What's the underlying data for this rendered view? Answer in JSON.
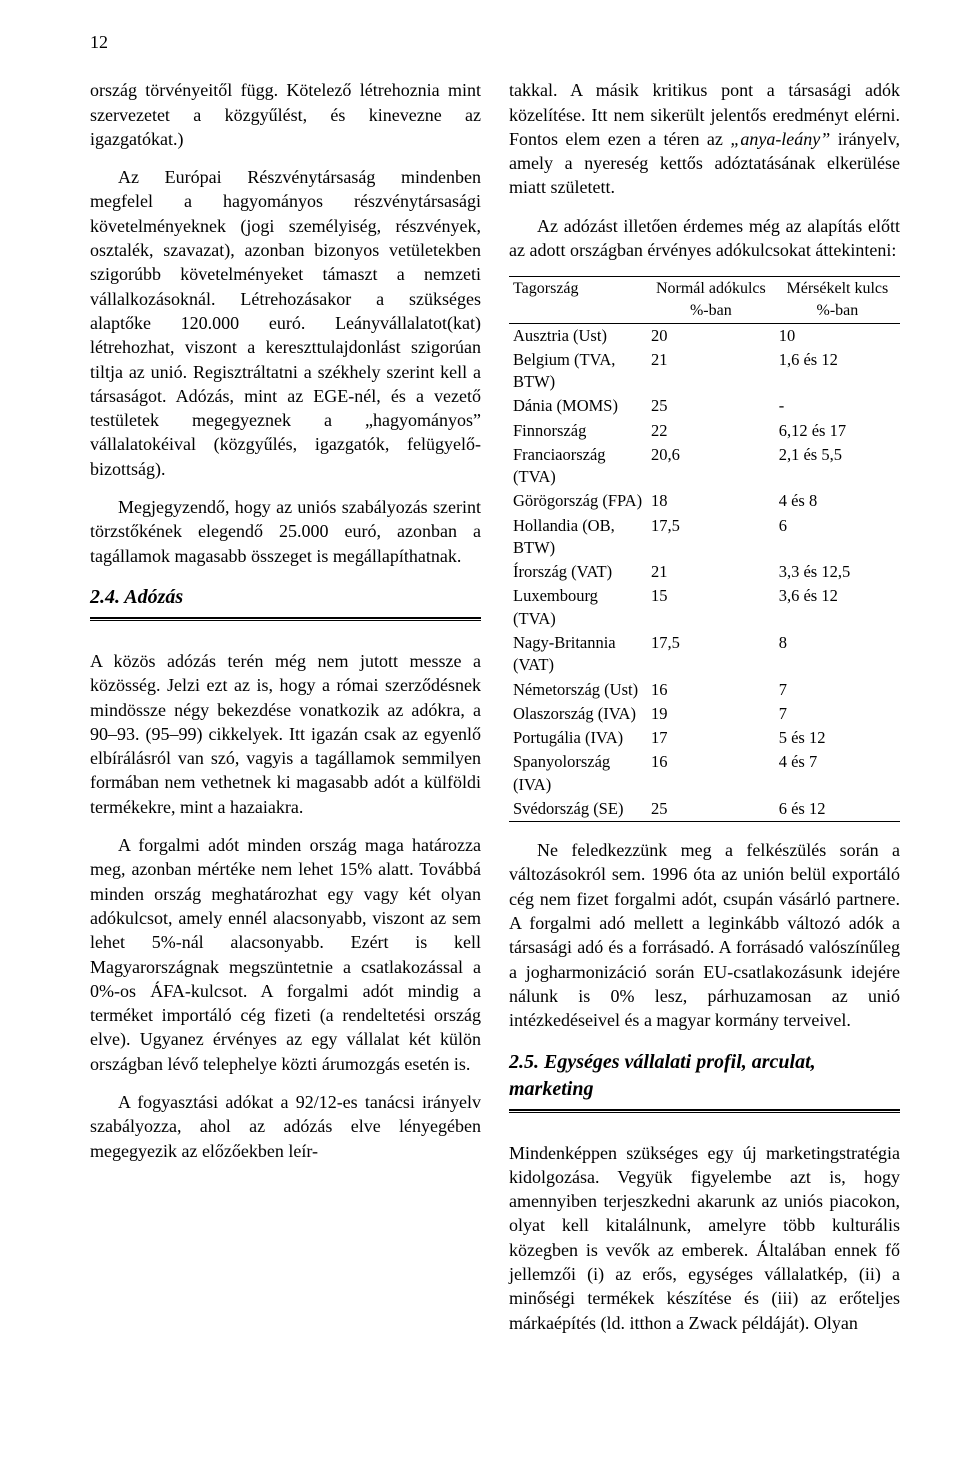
{
  "page_number": "12",
  "left": {
    "p1": "ország törvényeitől függ. Kötelező létrehoznia mint szervezetet a közgyűlést, és kinevezne az igazgatókat.)",
    "p2": "Az Európai Részvénytársaság mindenben megfelel a hagyományos részvénytársasági követelményeknek (jogi személyiség, részvények, osztalék, szavazat), azonban bizonyos vetületekben szigorúbb követelményeket támaszt a nemzeti vállalkozásoknál. Létrehozásakor a szükséges alaptőke 120.000 euró. Leányvállalatot(kat) létrehozhat, viszont a kereszttulajdonlást szigorúan tiltja az unió. Regisztráltatni a székhely szerint kell a társaságot. Adózás, mint az EGE-nél, és a vezető testületek megegyeznek a „hagyományos” vállalatokéival (közgyűlés, igazgatók, felügyelő-bizottság).",
    "p3": "Megjegyzendő, hogy az uniós szabályozás szerint törzstőkének elegendő 25.000 euró, azonban a tagállamok magasabb összeget is megállapíthatnak.",
    "h1": "2.4. Adózás",
    "p4": "A közös adózás terén még nem jutott messze a közösség. Jelzi ezt az is, hogy a római szerződésnek mindössze négy bekezdése vonatkozik az adókra, a 90–93. (95–99) cikkelyek. Itt igazán csak az egyenlő elbírálásról van szó, vagyis a tagállamok semmilyen formában nem vethetnek ki magasabb adót a külföldi termékekre, mint a hazaiakra.",
    "p5": "A forgalmi adót minden ország maga határozza meg, azonban mértéke nem lehet 15% alatt. Továbbá minden ország meghatározhat egy vagy két olyan adókulcsot, amely ennél alacsonyabb, viszont az sem lehet 5%-nál alacsonyabb. Ezért is kell Magyarországnak megszüntetnie a csatlakozással a 0%-os ÁFA-kulcsot. A forgalmi adót mindig a terméket importáló cég fizeti (a rendeltetési ország elve). Ugyanez érvényes az egy vállalat két külön országban lévő telephelye közti árumozgás esetén is.",
    "p6": "A fogyasztási adókat a 92/12-es tanácsi irányelv szabályozza, ahol az adózás elve lényegében megegyezik az előzőekben leír-"
  },
  "right": {
    "p1a": "takkal. A másik kritikus pont a társasági adók közelítése. Itt nem sikerült jelentős eredményt elérni. Fontos elem ezen a téren az ",
    "p1_italic": "„anya-leány”",
    "p1b": " irányelv, amely a nyereség kettős adóztatásának elkerülése miatt született.",
    "p2": "Az adózást illetően érdemes még az alapítás előtt az adott országban érvényes adókulcsokat áttekinteni:",
    "table": {
      "headers": {
        "c1": "Tagország",
        "c2": "Normál adókulcs %-ban",
        "c3": "Mérsékelt kulcs %-ban"
      },
      "rows": [
        {
          "c1": "Ausztria (Ust)",
          "c2": "20",
          "c3": "10"
        },
        {
          "c1": "Belgium (TVA, BTW)",
          "c2": "21",
          "c3": "1,6 és 12"
        },
        {
          "c1": "Dánia (MOMS)",
          "c2": "25",
          "c3": "-"
        },
        {
          "c1": "Finnország",
          "c2": "22",
          "c3": "6,12 és 17"
        },
        {
          "c1": "Franciaország (TVA)",
          "c2": "20,6",
          "c3": "2,1 és 5,5"
        },
        {
          "c1": "Görögország (FPA)",
          "c2": "18",
          "c3": "4 és 8"
        },
        {
          "c1": "Hollandia (OB, BTW)",
          "c2": "17,5",
          "c3": "6"
        },
        {
          "c1": "Írország (VAT)",
          "c2": "21",
          "c3": "3,3 és 12,5"
        },
        {
          "c1": "Luxembourg (TVA)",
          "c2": "15",
          "c3": "3,6 és 12"
        },
        {
          "c1": "Nagy-Britannia (VAT)",
          "c2": "17,5",
          "c3": "8"
        },
        {
          "c1": "Németország (Ust)",
          "c2": "16",
          "c3": "7"
        },
        {
          "c1": "Olaszország (IVA)",
          "c2": "19",
          "c3": "7"
        },
        {
          "c1": "Portugália (IVA)",
          "c2": "17",
          "c3": "5 és 12"
        },
        {
          "c1": "Spanyolország (IVA)",
          "c2": "16",
          "c3": "4 és 7"
        },
        {
          "c1": "Svédország (SE)",
          "c2": "25",
          "c3": "6 és 12"
        }
      ]
    },
    "p3": "Ne feledkezzünk meg a felkészülés során a változásokról sem. 1996 óta az unión belül exportáló cég nem fizet forgalmi adót, csupán vásárló partnere. A forgalmi adó mellett a leginkább változó adók a társasági adó és a forrásadó. A forrásadó valószínűleg a jogharmonizáció során EU-csatlakozásunk idejére nálunk is 0% lesz, párhuzamosan az unió intézkedéseivel és a magyar kormány terveivel.",
    "h2": "2.5. Egységes vállalati profil, arculat, marketing",
    "p4": "Mindenképpen szükséges egy új marketingstratégia kidolgozása. Vegyük figyelembe azt is, hogy amennyiben terjeszkedni akarunk az uniós piacokon, olyat kell kitalálnunk, amelyre több kulturális közegben is vevők az emberek. Általában ennek fő jellemzői (i) az erős, egységes vállalatkép, (ii) a minőségi termékek készítése és (iii) az erőteljes márkaépítés (ld. itthon a Zwack példáját). Olyan"
  }
}
